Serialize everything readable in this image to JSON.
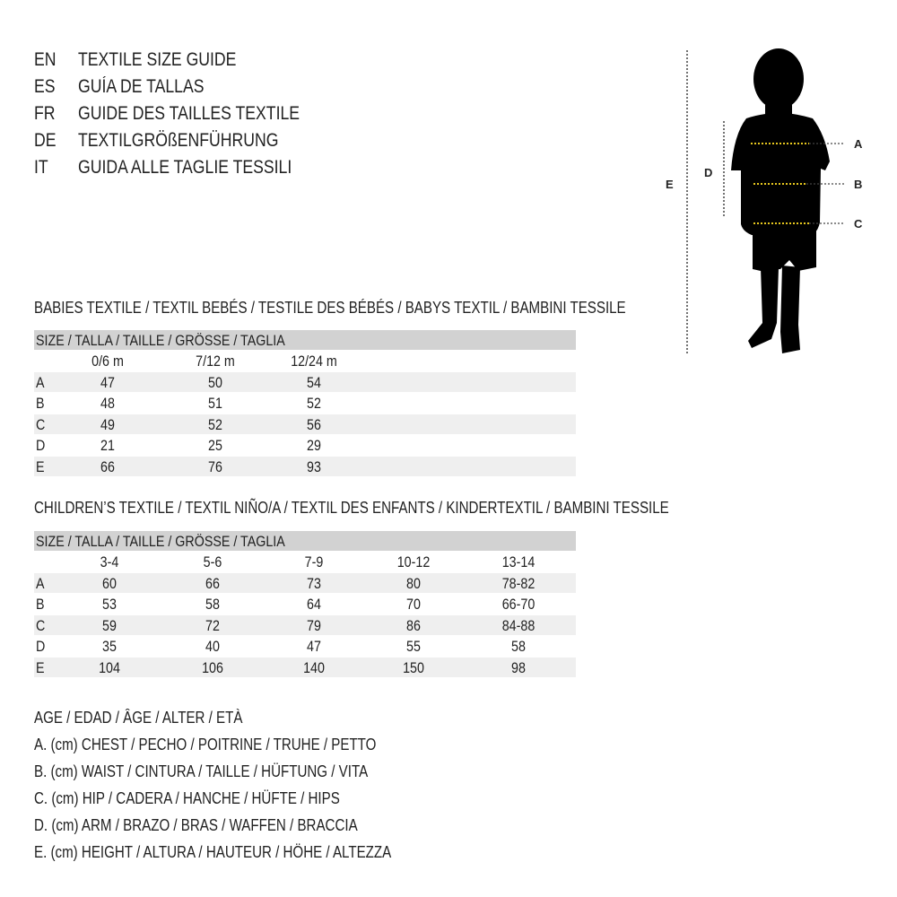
{
  "header": [
    {
      "code": "EN",
      "text": "TEXTILE SIZE GUIDE"
    },
    {
      "code": "ES",
      "text": "GUÍA DE TALLAS"
    },
    {
      "code": "FR",
      "text": "GUIDE DES TAILLES TEXTILE"
    },
    {
      "code": "DE",
      "text": "TEXTILGRÖßENFÜHRUNG"
    },
    {
      "code": "IT",
      "text": "GUIDA ALLE TAGLIE TESSILI"
    }
  ],
  "babies": {
    "title": "BABIES TEXTILE / TEXTIL BEBÉS / TESTILE DES BÉBÉS / BABYS TEXTIL / BAMBINI TESSILE",
    "size_header": "SIZE / TALLA / TAILLE / GRÖSSE / TAGLIA",
    "columns": [
      "0/6 m",
      "7/12 m",
      "12/24 m"
    ],
    "rows": [
      {
        "label": "A",
        "values": [
          "47",
          "50",
          "54"
        ]
      },
      {
        "label": "B",
        "values": [
          "48",
          "51",
          "52"
        ]
      },
      {
        "label": "C",
        "values": [
          "49",
          "52",
          "56"
        ]
      },
      {
        "label": "D",
        "values": [
          "21",
          "25",
          "29"
        ]
      },
      {
        "label": "E",
        "values": [
          "66",
          "76",
          "93"
        ]
      }
    ]
  },
  "children": {
    "title": "CHILDREN’S TEXTILE / TEXTIL NIÑO/A / TEXTIL DES ENFANTS / KINDERTEXTIL / BAMBINI TESSILE",
    "size_header": "SIZE / TALLA / TAILLE / GRÖSSE / TAGLIA",
    "columns": [
      "3-4",
      "5-6",
      "7-9",
      "10-12",
      "13-14"
    ],
    "rows": [
      {
        "label": "A",
        "values": [
          "60",
          "66",
          "73",
          "80",
          "78-82"
        ]
      },
      {
        "label": "B",
        "values": [
          "53",
          "58",
          "64",
          "70",
          "66-70"
        ]
      },
      {
        "label": "C",
        "values": [
          "59",
          "72",
          "79",
          "86",
          "84-88"
        ]
      },
      {
        "label": "D",
        "values": [
          "35",
          "40",
          "47",
          "55",
          "58"
        ]
      },
      {
        "label": "E",
        "values": [
          "104",
          "106",
          "140",
          "150",
          "98"
        ]
      }
    ]
  },
  "legend": [
    "AGE / EDAD / ÂGE / ALTER / ETÀ",
    "A. (cm) CHEST / PECHO / POITRINE / TRUHE / PETTO",
    "B. (cm) WAIST / CINTURA / TAILLE / HÜFTUNG / VITA",
    "C. (cm) HIP / CADERA / HANCHE / HÜFTE / HIPS",
    "D. (cm) ARM / BRAZO / BRAS / WAFFEN / BRACCIA",
    "E. (cm) HEIGHT / ALTURA / HAUTEUR / HÖHE / ALTEZZA"
  ],
  "figure": {
    "labels": {
      "a": "A",
      "b": "B",
      "c": "C",
      "d": "D",
      "e": "E"
    },
    "marker_color": "#e8c81e",
    "silhouette_color": "#000000"
  }
}
